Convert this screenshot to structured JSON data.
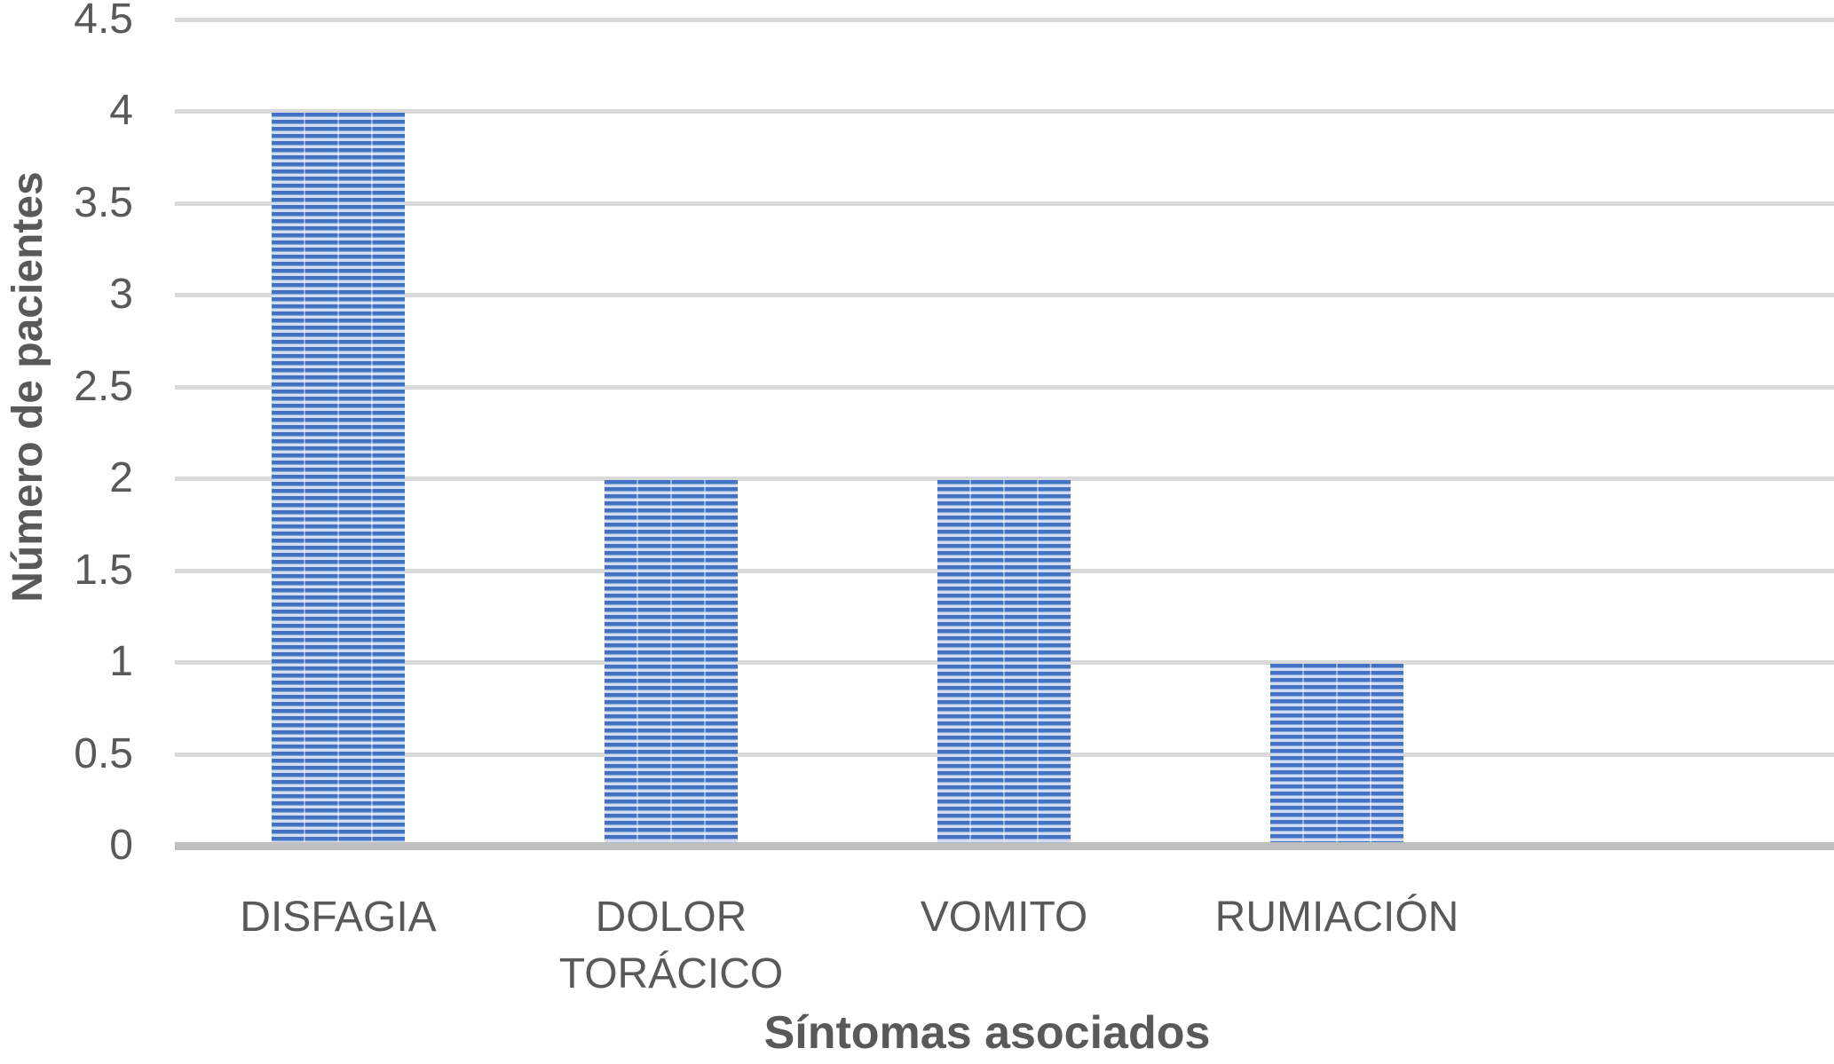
{
  "chart_data": {
    "type": "bar",
    "title": "",
    "categories": [
      "DISFAGIA",
      "DOLOR TORÁCICO",
      "VOMITO",
      "RUMIACIÓN"
    ],
    "values": [
      4,
      2,
      2,
      1
    ],
    "xlabel": "Síntomas asociados",
    "ylabel": "Número de pacientes",
    "yticks": [
      0,
      0.5,
      1,
      1.5,
      2,
      2.5,
      3,
      3.5,
      4,
      4.5
    ],
    "ylim": [
      0,
      4.5
    ],
    "grid": true,
    "legend_position": "none",
    "bar_pattern": "horizontal-stripes",
    "colors": {
      "bar_stripe": "#4472C4",
      "bar_stripe_light": "#D2DDF1",
      "gridline": "#D9D9D9",
      "axis_line": "#BFBFBF",
      "text": "#595959"
    }
  }
}
